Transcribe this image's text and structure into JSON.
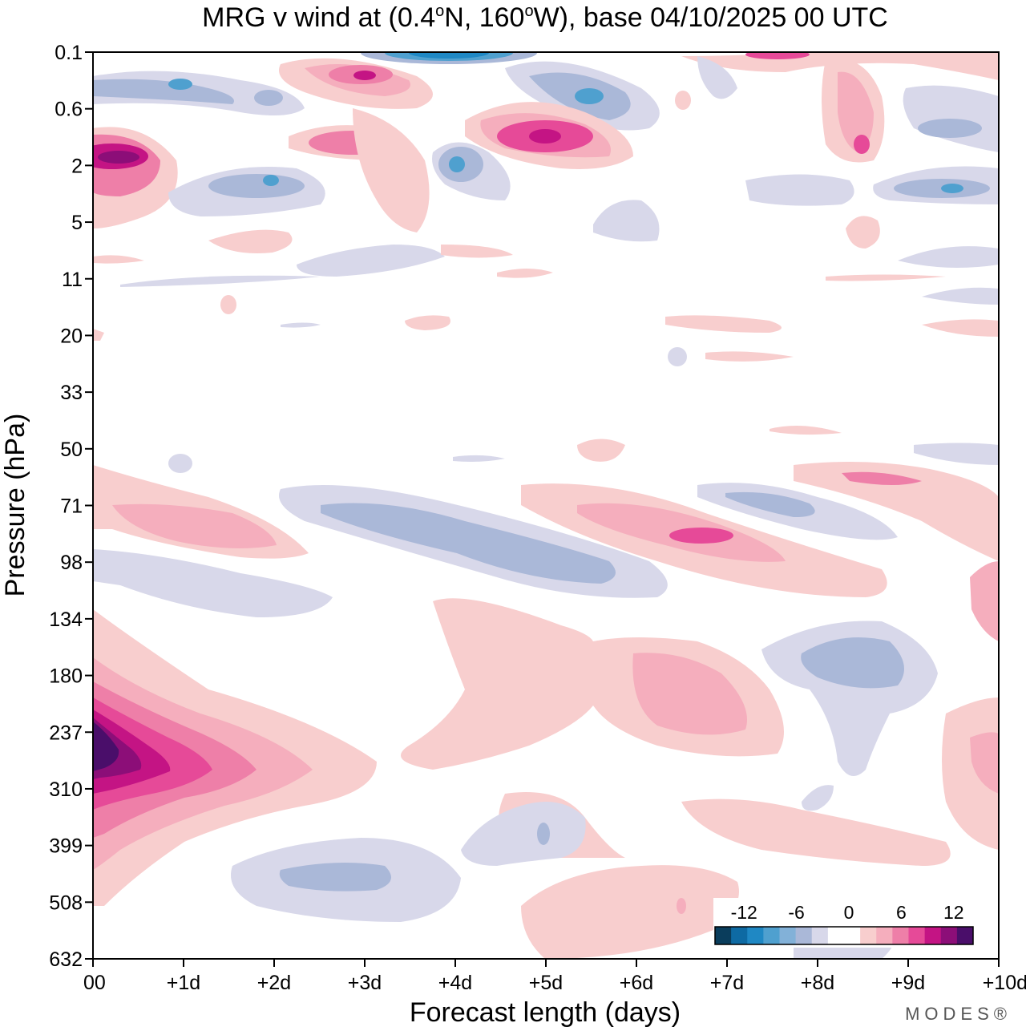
{
  "chart_data": {
    "type": "heatmap",
    "title": "MRG v wind at (0.4°N, 160°W),  base 04/10/2025  00 UTC",
    "title_parts": {
      "prefix": "MRG v wind at (0.4",
      "deg1": "o",
      "mid": "N, 160",
      "deg2": "o",
      "suffix": "W),  base 04/10/2025  00 UTC"
    },
    "xlabel": "Forecast length (days)",
    "ylabel": "Pressure (hPa)",
    "x_ticks": [
      "00",
      "+1d",
      "+2d",
      "+3d",
      "+4d",
      "+5d",
      "+6d",
      "+7d",
      "+8d",
      "+9d",
      "+10d"
    ],
    "xlim": [
      0,
      10
    ],
    "y_ticks": [
      "0.1",
      "0.6",
      "2",
      "5",
      "11",
      "20",
      "33",
      "50",
      "71",
      "98",
      "134",
      "180",
      "237",
      "310",
      "399",
      "508",
      "632"
    ],
    "colorbar": {
      "labels": [
        "-12",
        "-6",
        "0",
        "6",
        "12"
      ],
      "colors": [
        "#0a3d5c",
        "#0e6aa3",
        "#1f88c4",
        "#4fa0cf",
        "#82b1d8",
        "#aab8d8",
        "#d8d8ea",
        "#ffffff",
        "#ffffff",
        "#f8cece",
        "#f5aebd",
        "#ee7fa8",
        "#e64a98",
        "#c41484",
        "#8c0e78",
        "#4a0e6a"
      ]
    },
    "features": [
      {
        "name": "upper-positive-core",
        "day": 0.3,
        "level": "2",
        "value": 14
      },
      {
        "name": "upper-positive-band",
        "day": 3.0,
        "level": "0.1",
        "value": 9
      },
      {
        "name": "upper-positive-band-2",
        "day": 5.0,
        "level": "2",
        "value": 13
      },
      {
        "name": "upper-negative-jet",
        "day": 4.0,
        "level": "0.1",
        "value": -11
      },
      {
        "name": "upper-negative-band",
        "day": 5.5,
        "level": "0.6",
        "value": -7
      },
      {
        "name": "mid-positive-band",
        "day": 1.5,
        "level": "71",
        "value": 6
      },
      {
        "name": "mid-negative-band",
        "day": 4.0,
        "level": "98",
        "value": -5
      },
      {
        "name": "mid-positive-band-2",
        "day": 7.0,
        "level": "71",
        "value": 8
      },
      {
        "name": "lower-positive-core",
        "day": 0.2,
        "level": "237",
        "value": 16
      },
      {
        "name": "lower-positive-spread",
        "day": 5.0,
        "level": "180",
        "value": 3
      },
      {
        "name": "lower-negative-1",
        "day": 3.0,
        "level": "508",
        "value": -5
      },
      {
        "name": "lower-negative-2",
        "day": 8.5,
        "level": "180",
        "value": -5
      },
      {
        "name": "lower-positive-2",
        "day": 7.0,
        "level": "180",
        "value": 5
      }
    ]
  },
  "brand": "MODES®"
}
